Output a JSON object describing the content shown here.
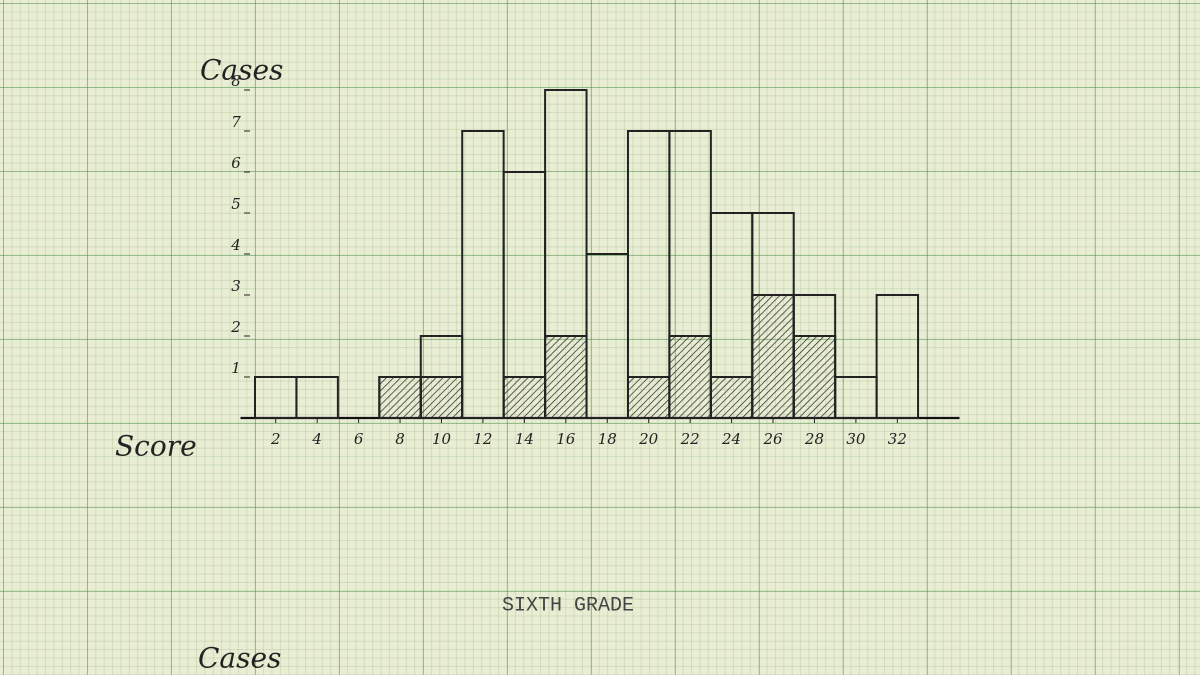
{
  "chart_data": {
    "type": "histogram",
    "title": "SIXTH GRADE",
    "y_label": "Cases",
    "x_label": "Score",
    "next_chart_label": "Cases",
    "bins": [
      1,
      3,
      5,
      7,
      9,
      11,
      13,
      15,
      17,
      19,
      21,
      23,
      25,
      27,
      29,
      31,
      33
    ],
    "series": [
      {
        "color": "#222222",
        "fill": "none",
        "values": [
          1,
          1,
          0,
          1,
          2,
          7,
          6,
          8,
          4,
          7,
          7,
          5,
          5,
          3,
          1,
          3
        ]
      },
      {
        "color": "#222222",
        "fill": "hatch",
        "values": [
          0,
          0,
          0,
          1,
          1,
          0,
          1,
          2,
          0,
          1,
          2,
          1,
          3,
          2,
          0,
          0
        ]
      }
    ],
    "xlim": [
      0.3,
      35
    ],
    "ylim": [
      0,
      8
    ],
    "xticks": [
      2,
      4,
      6,
      8,
      10,
      12,
      14,
      16,
      18,
      20,
      22,
      24,
      26,
      28,
      30,
      32
    ],
    "yticks": [
      1,
      2,
      3,
      4,
      5,
      6,
      7,
      8
    ]
  }
}
